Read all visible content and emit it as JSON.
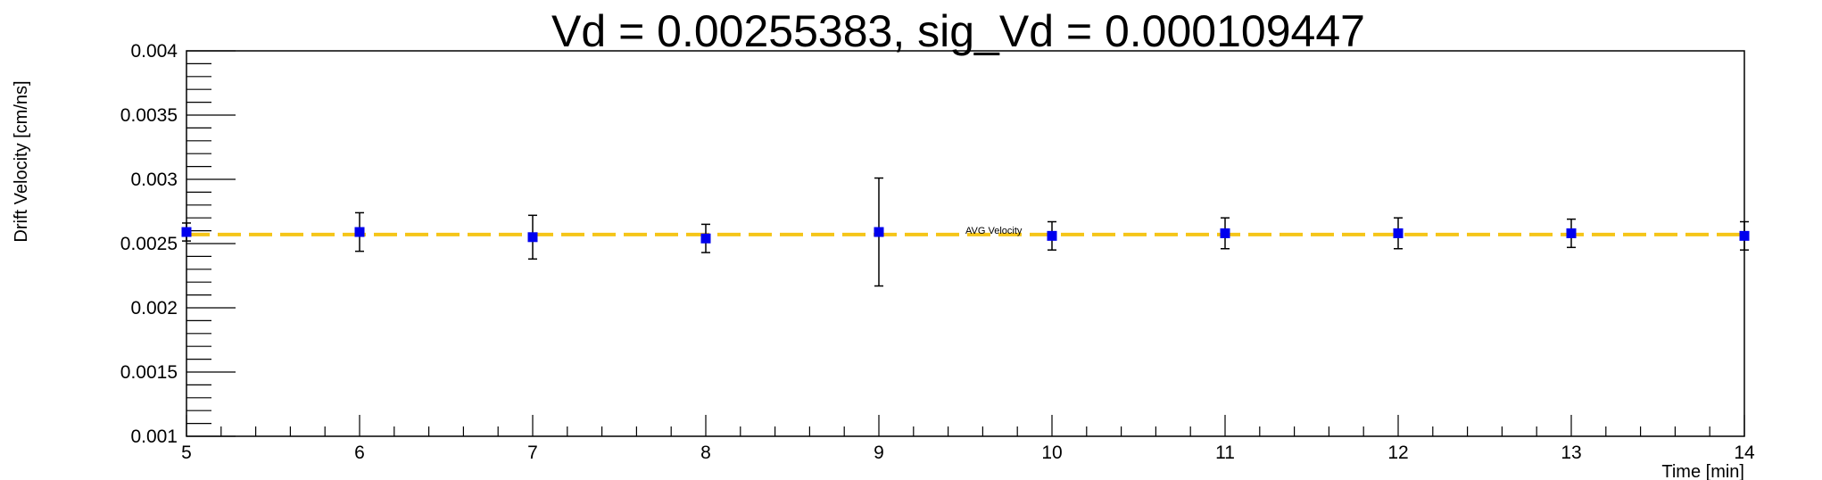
{
  "chart_data": {
    "type": "scatter",
    "title": "Vd = 0.00255383, sig_Vd = 0.000109447",
    "xlabel": "Time [min]",
    "ylabel": "Drift Velocity [cm/ns]",
    "xlim": [
      5,
      14
    ],
    "ylim": [
      0.001,
      0.004
    ],
    "x_ticks": [
      "5",
      "6",
      "7",
      "8",
      "9",
      "10",
      "11",
      "12",
      "13",
      "14"
    ],
    "y_ticks": [
      "0.001",
      "0.0015",
      "0.002",
      "0.0025",
      "0.003",
      "0.0035",
      "0.004"
    ],
    "grid": false,
    "legend": "none",
    "annotation": "AVG Velocity",
    "series": [
      {
        "x": [
          5,
          6,
          7,
          8,
          9,
          10,
          11,
          12,
          13,
          14
        ],
        "y": [
          0.00259,
          0.00259,
          0.00255,
          0.00254,
          0.00259,
          0.00256,
          0.00258,
          0.00258,
          0.00258,
          0.00256
        ],
        "yerr": [
          7e-05,
          0.00015,
          0.00017,
          0.00011,
          0.00042,
          0.00011,
          0.00012,
          0.00012,
          0.00011,
          0.00011
        ],
        "color": "#0000ee"
      }
    ],
    "reference_line": {
      "y": 0.00257,
      "color": "#f5c518",
      "style": "dashed"
    }
  }
}
